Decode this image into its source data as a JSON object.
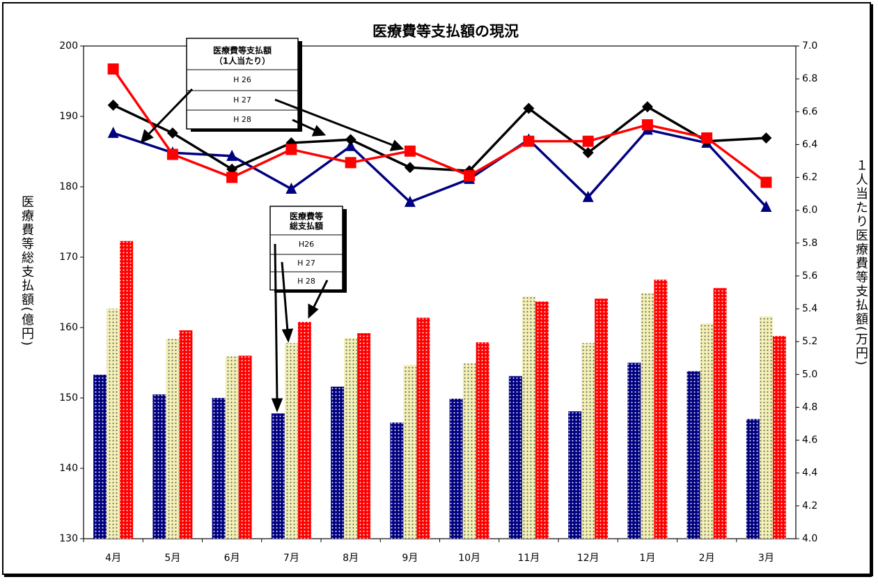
{
  "chart_data": {
    "type": "combo",
    "title": "医療費等支払額の現況",
    "y_label": "医療費等総支払額(億円)",
    "y2_label": "１人当たり医療費等支払額(万円)",
    "categories": [
      "4月",
      "5月",
      "6月",
      "7月",
      "8月",
      "9月",
      "10月",
      "11月",
      "12月",
      "1月",
      "2月",
      "3月"
    ],
    "ylim": [
      130,
      200
    ],
    "yticks": [
      130,
      140,
      150,
      160,
      170,
      180,
      190,
      200
    ],
    "y2lim": [
      4,
      7
    ],
    "y2ticks": [
      {
        "value": 4,
        "label": "4.0"
      },
      {
        "value": 4.2,
        "label": "4.2"
      },
      {
        "value": 4.4,
        "label": "4.4"
      },
      {
        "value": 4.6,
        "label": "4.6"
      },
      {
        "value": 4.8,
        "label": "4.8"
      },
      {
        "value": 5,
        "label": "5.0"
      },
      {
        "value": 5.2,
        "label": "5.2"
      },
      {
        "value": 5.4,
        "label": "5.4"
      },
      {
        "value": 5.6,
        "label": "5.6"
      },
      {
        "value": 5.8,
        "label": "5.8"
      },
      {
        "value": 6,
        "label": "6.0"
      },
      {
        "value": 6.2,
        "label": "6.2"
      },
      {
        "value": 6.4,
        "label": "6.4"
      },
      {
        "value": 6.6,
        "label": "6.6"
      },
      {
        "value": 6.8,
        "label": "6.8"
      },
      {
        "value": 7,
        "label": "7.0"
      }
    ],
    "grid": false,
    "line_legend_title": [
      "医療費等支払額",
      "（1人当たり）"
    ],
    "bar_legend_title": [
      "医療費等",
      "総支払額"
    ],
    "series": [
      {
        "name": "H26",
        "type": "bar",
        "color": "#000080",
        "dot": "#ffffff",
        "values": [
          153.3,
          150.5,
          150.0,
          147.8,
          151.6,
          146.5,
          149.9,
          153.1,
          148.1,
          155.0,
          153.8,
          147.0
        ]
      },
      {
        "name": "H 27",
        "type": "bar",
        "color": "#f2f0b4",
        "dot": "#555555",
        "values": [
          162.7,
          158.4,
          155.9,
          157.8,
          158.5,
          154.7,
          154.9,
          164.4,
          157.8,
          164.9,
          160.6,
          161.6
        ]
      },
      {
        "name": "H 28",
        "type": "bar",
        "color": "#ff0000",
        "dot": "#ffffff",
        "values": [
          172.3,
          159.6,
          156.0,
          160.8,
          159.2,
          161.4,
          157.9,
          163.7,
          164.1,
          166.8,
          165.6,
          158.8
        ]
      },
      {
        "name": "H 26",
        "type": "line",
        "axis": "y2",
        "marker": "triangle",
        "color": "#000080",
        "values": [
          6.47,
          6.35,
          6.33,
          6.13,
          6.39,
          6.05,
          6.19,
          6.43,
          6.08,
          6.49,
          6.41,
          6.02
        ]
      },
      {
        "name": "H 27",
        "type": "line",
        "axis": "y2",
        "marker": "diamond",
        "color": "#000000",
        "values": [
          6.64,
          6.47,
          6.25,
          6.41,
          6.43,
          6.26,
          6.24,
          6.62,
          6.35,
          6.63,
          6.42,
          6.44
        ]
      },
      {
        "name": "H 28",
        "type": "line",
        "axis": "y2",
        "marker": "square",
        "color": "#ff0000",
        "values": [
          6.86,
          6.34,
          6.2,
          6.37,
          6.29,
          6.36,
          6.21,
          6.42,
          6.42,
          6.52,
          6.44,
          6.17
        ]
      }
    ]
  }
}
